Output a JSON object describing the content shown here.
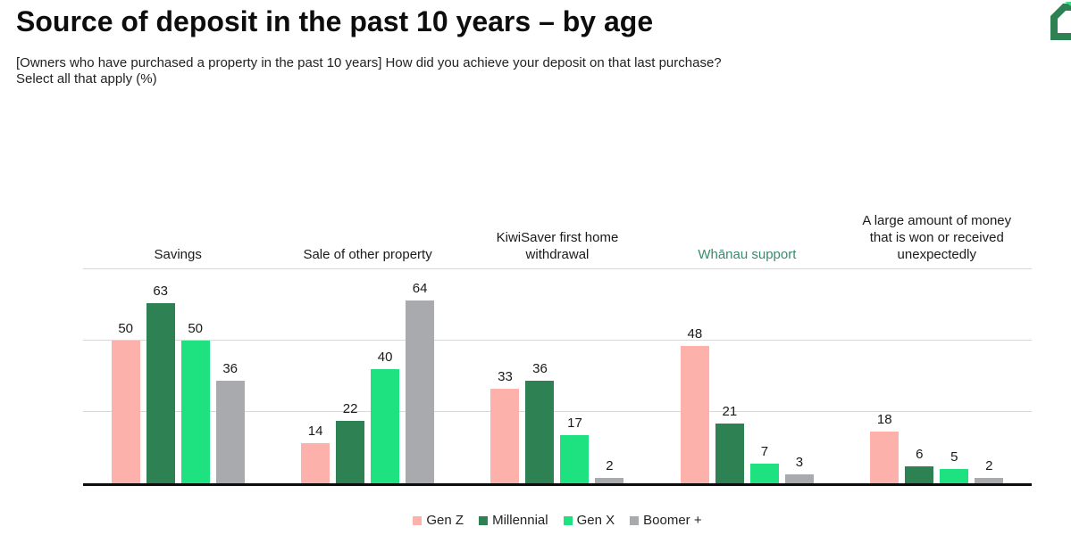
{
  "header": {
    "title": "Source of deposit in the past 10 years – by age",
    "subtitle_line1": "[Owners who have purchased a property in the past 10 years] How did you achieve your deposit on that last purchase?",
    "subtitle_line2": "Select all that apply (%)",
    "logo": {
      "name": "green-house-logo",
      "dark_color": "#2D8152",
      "light_color": "#3DDB7F"
    }
  },
  "chart_data": {
    "type": "bar",
    "title": "Source of deposit in the past 10 years – by age",
    "categories": [
      {
        "label": "Savings",
        "color": "#1a1a1a"
      },
      {
        "label": "Sale of other property",
        "color": "#1a1a1a"
      },
      {
        "label": "KiwiSaver first home withdrawal",
        "color": "#1a1a1a"
      },
      {
        "label": "Whānau support",
        "color": "#3B8A6B"
      },
      {
        "label": "A large amount of money that is won or received unexpectedly",
        "color": "#1a1a1a"
      }
    ],
    "series": [
      {
        "name": "Gen Z",
        "color": "#FCB1AB",
        "values": [
          50,
          14,
          33,
          48,
          18
        ]
      },
      {
        "name": "Millennial",
        "color": "#2D8152",
        "values": [
          63,
          22,
          36,
          21,
          6
        ]
      },
      {
        "name": "Gen X",
        "color": "#1EE280",
        "values": [
          50,
          40,
          17,
          7,
          5
        ]
      },
      {
        "name": "Boomer +",
        "color": "#A8AAAD",
        "values": [
          36,
          64,
          2,
          3,
          2
        ]
      }
    ],
    "ylim": [
      0,
      75
    ],
    "gridlines": [
      25,
      50,
      75
    ],
    "grid_color": "#D9D9D9",
    "axis_color": "#0D0D0D",
    "value_labels": true,
    "legend_position": "bottom",
    "xlabel": "",
    "ylabel": ""
  }
}
